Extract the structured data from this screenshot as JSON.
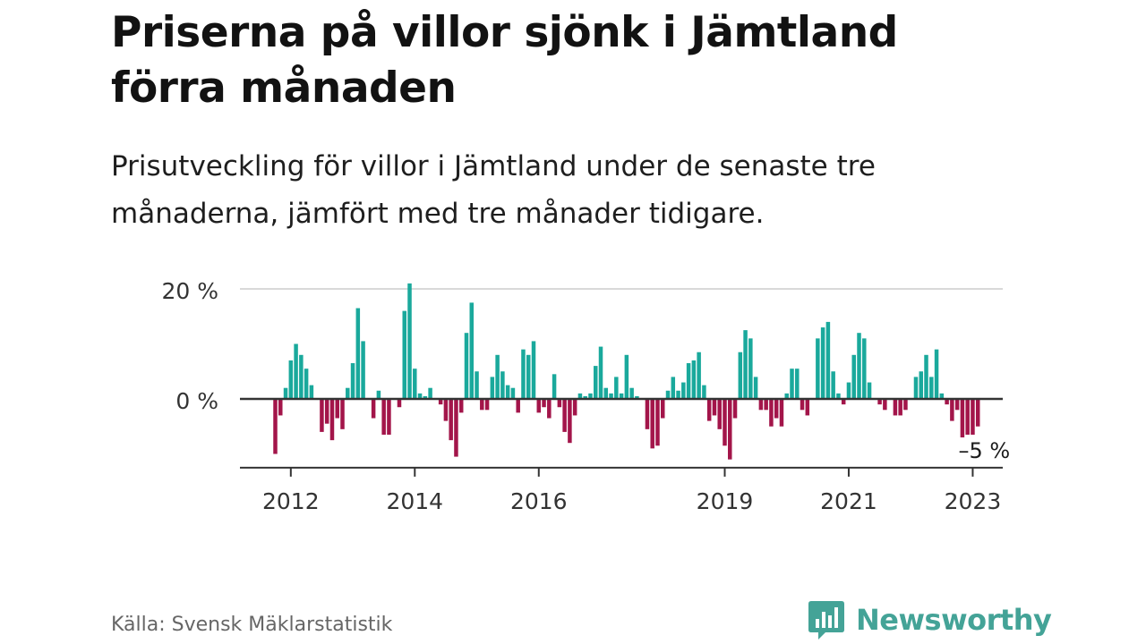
{
  "header": {
    "title": "Priserna på villor sjönk i Jämtland förra månaden",
    "subtitle": "Prisutveckling för villor i Jämtland under de senaste tre månaderna, jämfört med tre månader tidigare."
  },
  "footer": {
    "source": "Källa: Svensk Mäklarstatistik",
    "brand": "Newsworthy"
  },
  "colors": {
    "positive": "#1aa99c",
    "negative": "#a3154a",
    "axis": "#333333",
    "grid": "#d9d9d9",
    "brand": "#44a397"
  },
  "chart_data": {
    "type": "bar",
    "title": "",
    "xlabel": "",
    "ylabel": "",
    "ylim": [
      -12.5,
      20.5
    ],
    "y_ticks": [
      {
        "value": 0,
        "label": "0 %"
      },
      {
        "value": 20,
        "label": "20 %"
      }
    ],
    "x_ticks": [
      {
        "year": 2012,
        "label": "2012"
      },
      {
        "year": 2014,
        "label": "2014"
      },
      {
        "year": 2016,
        "label": "2016"
      },
      {
        "year": 2019,
        "label": "2019"
      },
      {
        "year": 2021,
        "label": "2021"
      },
      {
        "year": 2023,
        "label": "2023"
      }
    ],
    "grid": true,
    "start": "2011-10",
    "frequency": "monthly",
    "end_label": "–5 %",
    "series": [
      {
        "values": [
          -10,
          -3,
          2,
          7,
          10,
          8,
          5.5,
          2.5,
          0,
          -6,
          -4.5,
          -7.5,
          -3.5,
          -5.5,
          2,
          6.5,
          16.5,
          10.5,
          0,
          -3.5,
          1.5,
          -6.5,
          -6.5,
          0,
          -1.5,
          16,
          21,
          5.5,
          1,
          0.5,
          2,
          0,
          -1,
          -4,
          -7.5,
          -10.5,
          -2.5,
          12,
          17.5,
          5,
          -2,
          -2,
          4,
          8,
          5,
          2.5,
          2,
          -2.5,
          9,
          8,
          10.5,
          -2.5,
          -1.5,
          -3.5,
          4.5,
          -1.5,
          -6,
          -8,
          -3,
          1,
          0.5,
          1,
          6,
          9.5,
          2,
          1,
          4,
          1,
          8,
          2,
          0.5,
          0,
          -5.5,
          -9,
          -8.5,
          -3.5,
          1.5,
          4,
          1.5,
          3,
          6.5,
          7,
          8.5,
          2.5,
          -4,
          -3,
          -5.5,
          -8.5,
          -11,
          -3.5,
          8.5,
          12.5,
          11,
          4,
          -2,
          -2,
          -5,
          -3.5,
          -5,
          1,
          5.5,
          5.5,
          -2,
          -3,
          0,
          11,
          13,
          14,
          5,
          1,
          -1,
          3,
          8,
          12,
          11,
          3,
          0,
          -1,
          -2,
          0,
          -3,
          -3,
          -2,
          0,
          4,
          5,
          8,
          4,
          9,
          1,
          -1,
          -4,
          -2,
          -7,
          -6.5,
          -6.5,
          -5
        ]
      }
    ]
  }
}
